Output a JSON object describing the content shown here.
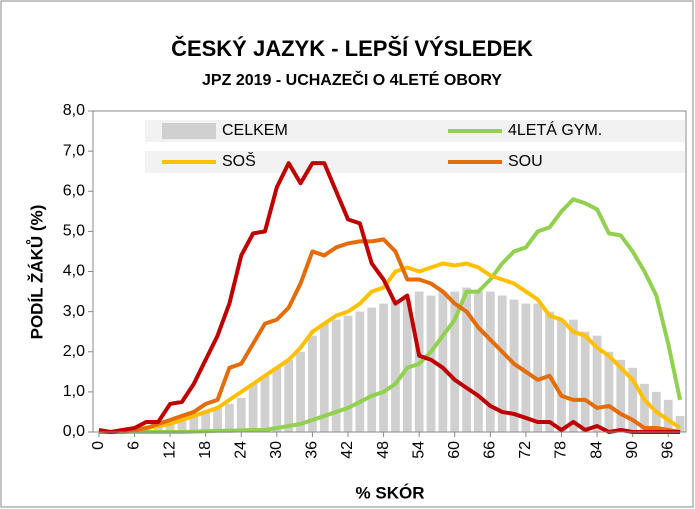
{
  "chart_data": {
    "type": "combo",
    "title": "ČESKÝ JAZYK - LEPŠÍ VÝSLEDEK",
    "subtitle": "JPZ 2019 - UCHAZEČI O 4LETÉ OBORY",
    "ylabel": "PODÍL ŽÁKŮ (%)",
    "xlabel": "% SKÓR",
    "x": [
      0,
      2,
      4,
      6,
      8,
      10,
      12,
      14,
      16,
      18,
      20,
      22,
      24,
      26,
      28,
      30,
      32,
      34,
      36,
      38,
      40,
      42,
      44,
      46,
      48,
      50,
      52,
      54,
      56,
      58,
      60,
      62,
      64,
      66,
      68,
      70,
      72,
      74,
      76,
      78,
      80,
      82,
      84,
      86,
      88,
      90,
      92,
      94,
      96,
      98
    ],
    "xlim": [
      -1,
      99
    ],
    "xticks": [
      0,
      6,
      12,
      18,
      24,
      30,
      36,
      42,
      48,
      54,
      60,
      66,
      72,
      78,
      84,
      90,
      96
    ],
    "ylim": [
      0,
      8
    ],
    "yticks": [
      {
        "value": 0,
        "label": "0,0"
      },
      {
        "value": 1,
        "label": "1,0"
      },
      {
        "value": 2,
        "label": "2,0"
      },
      {
        "value": 3,
        "label": "3,0"
      },
      {
        "value": 4,
        "label": "4,0"
      },
      {
        "value": 5,
        "label": "5,0"
      },
      {
        "value": 6,
        "label": "6,0"
      },
      {
        "value": 7,
        "label": "7,0"
      },
      {
        "value": 8,
        "label": "8,0"
      }
    ],
    "grid": false,
    "legend": "top",
    "series": [
      {
        "name": "CELKEM",
        "type": "bar",
        "color": "#d0d0d0",
        "values": [
          0,
          0,
          0,
          0.05,
          0.1,
          0.15,
          0.2,
          0.3,
          0.4,
          0.5,
          0.6,
          0.7,
          0.85,
          1.2,
          1.4,
          1.6,
          1.8,
          2.0,
          2.4,
          2.7,
          2.8,
          2.9,
          3.0,
          3.1,
          3.2,
          3.3,
          3.3,
          3.5,
          3.4,
          3.5,
          3.5,
          3.6,
          3.5,
          3.5,
          3.4,
          3.3,
          3.2,
          3.2,
          3.0,
          2.8,
          2.8,
          2.5,
          2.4,
          2.0,
          1.8,
          1.6,
          1.2,
          1.0,
          0.8,
          0.4
        ]
      },
      {
        "name": "4LETÁ GYM.",
        "type": "line",
        "color": "#92d050",
        "values": [
          0,
          0,
          0,
          0,
          0,
          0,
          0,
          0,
          0.01,
          0.02,
          0.03,
          0.03,
          0.04,
          0.05,
          0.05,
          0.1,
          0.15,
          0.2,
          0.3,
          0.4,
          0.5,
          0.6,
          0.75,
          0.9,
          1.0,
          1.2,
          1.6,
          1.7,
          2.0,
          2.4,
          2.8,
          3.5,
          3.5,
          3.8,
          4.2,
          4.5,
          4.6,
          5.0,
          5.1,
          5.5,
          5.8,
          5.7,
          5.55,
          4.95,
          4.9,
          4.5,
          4.0,
          3.4,
          2.2,
          0.8
        ]
      },
      {
        "name": "SOŠ",
        "type": "line",
        "color": "#ffc000",
        "values": [
          0,
          0,
          0,
          0.05,
          0.1,
          0.15,
          0.2,
          0.3,
          0.4,
          0.5,
          0.6,
          0.8,
          1.0,
          1.2,
          1.4,
          1.6,
          1.8,
          2.1,
          2.5,
          2.7,
          2.9,
          3.0,
          3.2,
          3.5,
          3.6,
          4.0,
          4.1,
          4.0,
          4.1,
          4.2,
          4.15,
          4.2,
          4.1,
          3.9,
          3.8,
          3.7,
          3.5,
          3.3,
          2.9,
          2.8,
          2.5,
          2.4,
          2.1,
          1.9,
          1.6,
          1.3,
          0.8,
          0.5,
          0.3,
          0.1
        ]
      },
      {
        "name": "SOU",
        "type": "line",
        "color": "#e46c0a",
        "values": [
          0,
          0,
          0,
          0.05,
          0.1,
          0.2,
          0.3,
          0.4,
          0.5,
          0.7,
          0.8,
          1.6,
          1.7,
          2.2,
          2.7,
          2.8,
          3.1,
          3.7,
          4.5,
          4.4,
          4.6,
          4.7,
          4.75,
          4.75,
          4.8,
          4.5,
          3.8,
          3.8,
          3.7,
          3.5,
          3.2,
          3.0,
          2.6,
          2.3,
          2.0,
          1.7,
          1.5,
          1.3,
          1.4,
          0.9,
          0.8,
          0.8,
          0.6,
          0.65,
          0.45,
          0.3,
          0.1,
          0.1,
          0.05,
          0
        ]
      },
      {
        "type": "line",
        "color": "#c00000",
        "values": [
          0.05,
          0,
          0.05,
          0.1,
          0.25,
          0.25,
          0.7,
          0.75,
          1.2,
          1.8,
          2.4,
          3.2,
          4.4,
          4.95,
          5.0,
          6.1,
          6.7,
          6.2,
          6.7,
          6.7,
          6.0,
          5.3,
          5.2,
          4.2,
          3.8,
          3.2,
          3.4,
          1.9,
          1.8,
          1.6,
          1.3,
          1.1,
          0.9,
          0.65,
          0.5,
          0.45,
          0.35,
          0.25,
          0.25,
          0.05,
          0.25,
          0.05,
          0.15,
          0,
          0.05,
          0,
          0,
          0,
          0,
          0
        ]
      }
    ]
  }
}
